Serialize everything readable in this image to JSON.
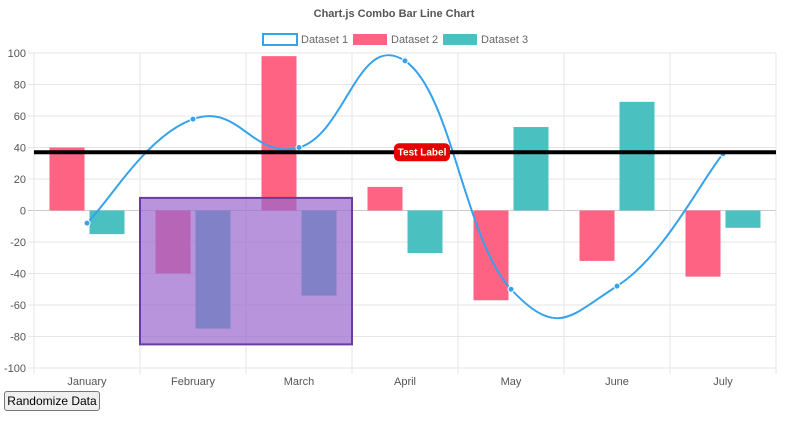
{
  "chart_data": {
    "type": "bar",
    "title": "Chart.js Combo Bar Line Chart",
    "categories": [
      "January",
      "February",
      "March",
      "April",
      "May",
      "June",
      "July"
    ],
    "ylim": [
      -100,
      100
    ],
    "yticks": [
      100,
      80,
      60,
      40,
      20,
      0,
      -20,
      -40,
      -60,
      -80,
      -100
    ],
    "grid": true,
    "legend_position": "top",
    "series": [
      {
        "name": "Dataset 1",
        "type": "line",
        "curve": "smooth",
        "color": "#36a2eb",
        "values": [
          -8,
          58,
          40,
          95,
          -50,
          -48,
          36
        ]
      },
      {
        "name": "Dataset 2",
        "type": "bar",
        "color": "#ff6384",
        "values": [
          40,
          -40,
          98,
          15,
          -57,
          -32,
          -42
        ]
      },
      {
        "name": "Dataset 3",
        "type": "bar",
        "color": "#4bc0c0",
        "values": [
          -15,
          -75,
          -54,
          -27,
          53,
          69,
          -11
        ]
      }
    ],
    "annotations": [
      {
        "type": "line",
        "value": 37,
        "color": "#000000",
        "label": "Test Label",
        "label_color": "#e60000"
      },
      {
        "type": "box",
        "x_from": "February",
        "x_to": "March",
        "y_from": -85,
        "y_to": 8,
        "color": "#9966cc"
      }
    ]
  },
  "controls": {
    "randomize_label": "Randomize Data"
  }
}
